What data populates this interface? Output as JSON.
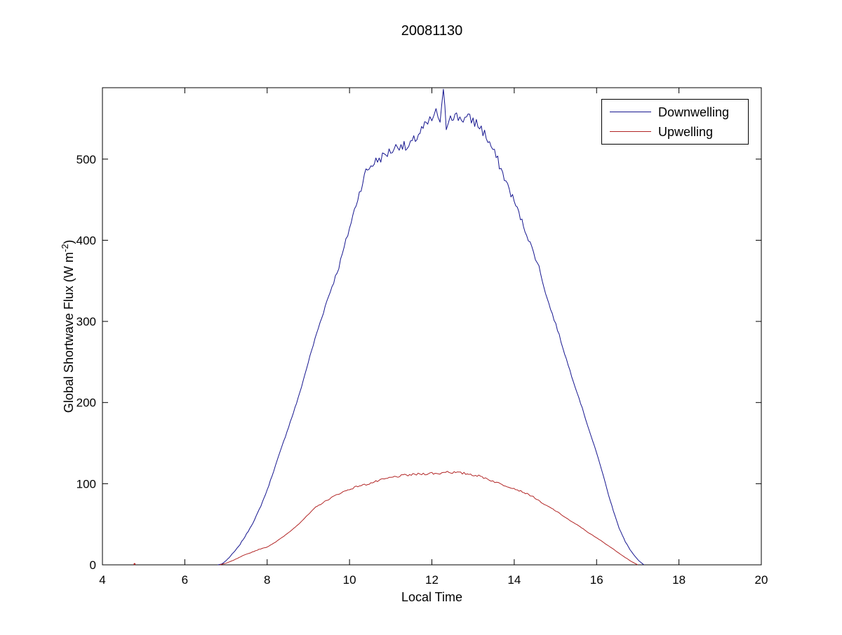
{
  "chart_data": {
    "type": "line",
    "title": "20081130",
    "xlabel": "Local Time",
    "ylabel": "Global Shortwave Flux (W m-2)",
    "ylabel_parts": {
      "main": "Global Shortwave Flux (W m",
      "sup": "-2",
      "end": ")"
    },
    "xlim": [
      4,
      20
    ],
    "ylim": [
      0,
      588
    ],
    "xticks": [
      4,
      6,
      8,
      10,
      12,
      14,
      16,
      18,
      20
    ],
    "yticks": [
      0,
      100,
      200,
      300,
      400,
      500
    ],
    "grid": false,
    "tick_direction": "in",
    "box": true,
    "axis_color": "#000000",
    "background": "#ffffff",
    "legend": {
      "position": "top-right",
      "border_color": "#000000",
      "background": "#ffffff"
    },
    "series": [
      {
        "name": "Downwelling",
        "color": "#16168f",
        "noise": {
          "base": 0.6,
          "peak": 9
        },
        "points": [
          [
            6.8,
            0
          ],
          [
            6.9,
            1
          ],
          [
            7.0,
            5
          ],
          [
            7.15,
            13
          ],
          [
            7.3,
            22
          ],
          [
            7.5,
            38
          ],
          [
            7.7,
            56
          ],
          [
            7.85,
            73
          ],
          [
            8.0,
            92
          ],
          [
            8.2,
            122
          ],
          [
            8.4,
            152
          ],
          [
            8.6,
            182
          ],
          [
            8.75,
            205
          ],
          [
            8.92,
            235
          ],
          [
            9.0,
            250
          ],
          [
            9.2,
            285
          ],
          [
            9.45,
            325
          ],
          [
            9.74,
            367
          ],
          [
            10.0,
            415
          ],
          [
            10.2,
            452
          ],
          [
            10.4,
            485
          ],
          [
            10.6,
            496
          ],
          [
            10.8,
            503
          ],
          [
            11.0,
            510
          ],
          [
            11.25,
            519
          ],
          [
            11.4,
            512
          ],
          [
            11.6,
            525
          ],
          [
            11.75,
            536
          ],
          [
            11.9,
            543
          ],
          [
            12.0,
            549
          ],
          [
            12.1,
            556
          ],
          [
            12.2,
            548
          ],
          [
            12.28,
            579
          ],
          [
            12.35,
            541
          ],
          [
            12.45,
            556
          ],
          [
            12.6,
            552
          ],
          [
            12.8,
            550
          ],
          [
            13.0,
            548
          ],
          [
            13.2,
            538
          ],
          [
            13.4,
            520
          ],
          [
            13.6,
            498
          ],
          [
            13.8,
            472
          ],
          [
            14.0,
            448
          ],
          [
            14.3,
            408
          ],
          [
            14.6,
            367
          ],
          [
            14.8,
            328
          ],
          [
            15.05,
            290
          ],
          [
            15.31,
            246
          ],
          [
            15.57,
            206
          ],
          [
            15.82,
            166
          ],
          [
            16.08,
            125
          ],
          [
            16.33,
            79
          ],
          [
            16.55,
            45
          ],
          [
            16.7,
            28
          ],
          [
            16.85,
            16
          ],
          [
            17.0,
            6
          ],
          [
            17.1,
            2
          ],
          [
            17.15,
            0
          ]
        ]
      },
      {
        "name": "Upwelling",
        "color": "#b22525",
        "noise": {
          "base": 0.2,
          "peak": 1.6
        },
        "points": [
          [
            6.85,
            0
          ],
          [
            7.0,
            2
          ],
          [
            7.2,
            6
          ],
          [
            7.4,
            11
          ],
          [
            7.6,
            15
          ],
          [
            7.8,
            19
          ],
          [
            8.0,
            22
          ],
          [
            8.2,
            28
          ],
          [
            8.4,
            35
          ],
          [
            8.6,
            43
          ],
          [
            8.8,
            52
          ],
          [
            9.0,
            62
          ],
          [
            9.18,
            71
          ],
          [
            9.4,
            78
          ],
          [
            9.6,
            84
          ],
          [
            9.8,
            89
          ],
          [
            10.0,
            93
          ],
          [
            10.2,
            97
          ],
          [
            10.4,
            99
          ],
          [
            10.6,
            102
          ],
          [
            10.8,
            105
          ],
          [
            11.05,
            108
          ],
          [
            11.3,
            110
          ],
          [
            11.5,
            111
          ],
          [
            11.75,
            112
          ],
          [
            12.0,
            113
          ],
          [
            12.15,
            112
          ],
          [
            12.33,
            115
          ],
          [
            12.5,
            114
          ],
          [
            12.7,
            113
          ],
          [
            12.9,
            112
          ],
          [
            13.1,
            110
          ],
          [
            13.3,
            107
          ],
          [
            13.44,
            104
          ],
          [
            13.7,
            99
          ],
          [
            13.95,
            95
          ],
          [
            14.2,
            90
          ],
          [
            14.46,
            84
          ],
          [
            14.7,
            75
          ],
          [
            14.9,
            70
          ],
          [
            15.14,
            62
          ],
          [
            15.4,
            53
          ],
          [
            15.6,
            47
          ],
          [
            15.82,
            39
          ],
          [
            16.1,
            30
          ],
          [
            16.33,
            22
          ],
          [
            16.5,
            16
          ],
          [
            16.7,
            9
          ],
          [
            16.85,
            4
          ],
          [
            17.0,
            0
          ]
        ]
      }
    ],
    "stray_points": [
      {
        "series": "Upwelling",
        "x": 4.78,
        "y": 1,
        "color": "#b22525"
      }
    ]
  }
}
